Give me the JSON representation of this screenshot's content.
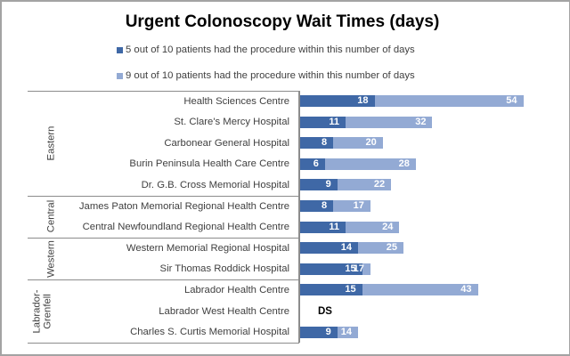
{
  "chart_data": {
    "type": "bar",
    "orientation": "horizontal",
    "title": "Urgent Colonoscopy Wait Times (days)",
    "xlabel": "",
    "ylabel": "",
    "grid": false,
    "legend_position": "top",
    "xlim": [
      0,
      60
    ],
    "categories": [
      "Health Sciences Centre",
      "St. Clare's Mercy Hospital",
      "Carbonear General Hospital",
      "Burin Peninsula Health Care Centre",
      "Dr. G.B. Cross Memorial Hospital",
      "James Paton Memorial Regional Health Centre",
      "Central Newfoundland Regional Health Centre",
      "Western Memorial Regional Hospital",
      "Sir Thomas Roddick Hospital",
      "Labrador Health Centre",
      "Labrador West Health Centre",
      "Charles S. Curtis Memorial Hospital"
    ],
    "groups": [
      {
        "name": "Eastern",
        "label_lines": [
          "Eastern"
        ],
        "start": 0,
        "count": 5
      },
      {
        "name": "Central",
        "label_lines": [
          "Central"
        ],
        "start": 5,
        "count": 2
      },
      {
        "name": "Western",
        "label_lines": [
          "Western"
        ],
        "start": 7,
        "count": 2
      },
      {
        "name": "Labrador-Grenfell",
        "label_lines": [
          "Labrador-",
          "Grenfell"
        ],
        "start": 9,
        "count": 3
      }
    ],
    "series": [
      {
        "name": "5 out of 10 patients had the procedure within this number of days",
        "color": "#3f68a6",
        "values": [
          18,
          11,
          8,
          6,
          9,
          8,
          11,
          14,
          15,
          15,
          null,
          9
        ]
      },
      {
        "name": "9 out of 10 patients had the procedure within this number of days",
        "color": "#93aad4",
        "values": [
          54,
          32,
          20,
          28,
          22,
          17,
          24,
          25,
          17,
          43,
          null,
          14
        ]
      }
    ],
    "annotations": [
      {
        "category_index": 10,
        "category": "Labrador West Health Centre",
        "text": "DS"
      }
    ]
  }
}
